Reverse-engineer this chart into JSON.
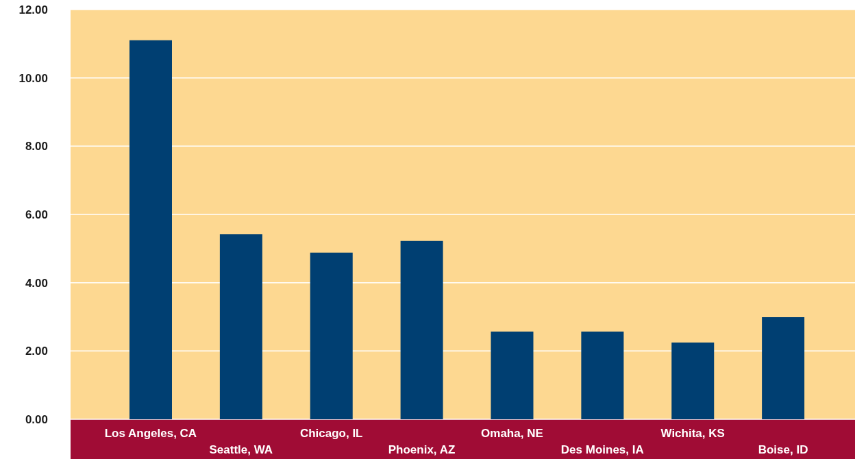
{
  "chart_data": {
    "type": "bar",
    "categories": [
      "Los Angeles, CA",
      "Seattle, WA",
      "Chicago, IL",
      "Phoenix, AZ",
      "Omaha, NE",
      "Des Moines, IA",
      "Wichita, KS",
      "Boise, ID"
    ],
    "values": [
      11.1,
      5.42,
      4.88,
      5.22,
      2.57,
      2.57,
      2.25,
      2.99
    ],
    "color": "#003f72",
    "ylim": [
      0,
      12
    ],
    "yticks": [
      {
        "value": 0,
        "label": "0.00"
      },
      {
        "value": 2,
        "label": "2.00"
      },
      {
        "value": 4,
        "label": "4.00"
      },
      {
        "value": 6,
        "label": "6.00"
      },
      {
        "value": 8,
        "label": "8.00"
      },
      {
        "value": 10,
        "label": "10.00"
      },
      {
        "value": 12,
        "label": "12.00"
      }
    ],
    "grid": "y",
    "legend": false
  }
}
